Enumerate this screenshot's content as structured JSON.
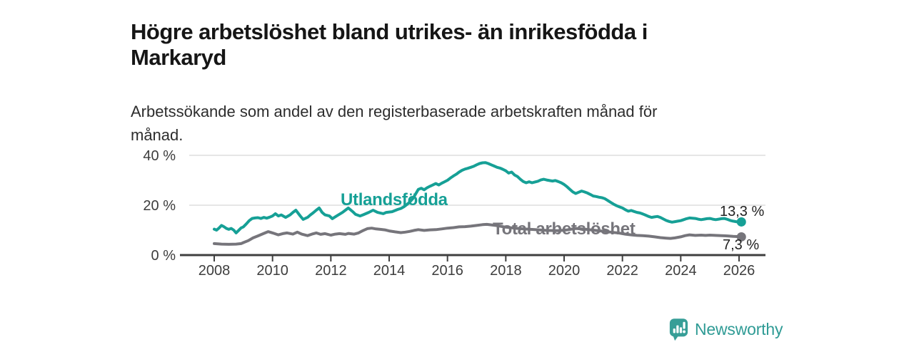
{
  "header": {
    "title_line1": "Högre arbetslöshet bland utrikes- än inrikesfödda i",
    "title_line2": "Markaryd",
    "subtitle_line1": "Arbetssökande som andel av den registerbaserade arbetskraften månad för",
    "subtitle_line2": "månad."
  },
  "chart_data": {
    "type": "line",
    "title": "Högre arbetslöshet bland utrikes- än inrikesfödda i Markaryd",
    "subtitle": "Arbetssökande som andel av den registerbaserade arbetskraften månad för månad.",
    "x_unit": "year",
    "xlim": [
      2008,
      2026.9
    ],
    "ylim": [
      0,
      43
    ],
    "grid": "horizontal",
    "x_ticks": [
      2008,
      2010,
      2012,
      2014,
      2016,
      2018,
      2020,
      2022,
      2024,
      2026
    ],
    "y_ticks": [
      {
        "value": 0,
        "label": "0 %"
      },
      {
        "value": 20,
        "label": "20 %"
      },
      {
        "value": 40,
        "label": "40 %"
      }
    ],
    "axis_color": "#3f3f3f",
    "grid_color": "#d8d8d8",
    "series": [
      {
        "name": "Utlandsfödda",
        "color": "#16a096",
        "end_label": "13,3 %",
        "end_value": 13.3,
        "points": [
          [
            2008.0,
            10.4
          ],
          [
            2008.08,
            10.0
          ],
          [
            2008.17,
            10.9
          ],
          [
            2008.25,
            11.9
          ],
          [
            2008.33,
            11.4
          ],
          [
            2008.42,
            10.7
          ],
          [
            2008.5,
            10.3
          ],
          [
            2008.58,
            10.7
          ],
          [
            2008.67,
            10.0
          ],
          [
            2008.75,
            8.9
          ],
          [
            2008.83,
            9.8
          ],
          [
            2008.92,
            10.9
          ],
          [
            2009.0,
            11.3
          ],
          [
            2009.1,
            12.5
          ],
          [
            2009.2,
            13.8
          ],
          [
            2009.3,
            14.7
          ],
          [
            2009.4,
            14.9
          ],
          [
            2009.5,
            15.0
          ],
          [
            2009.6,
            14.7
          ],
          [
            2009.7,
            15.1
          ],
          [
            2009.8,
            14.8
          ],
          [
            2009.9,
            15.2
          ],
          [
            2010.0,
            15.7
          ],
          [
            2010.1,
            16.6
          ],
          [
            2010.2,
            15.7
          ],
          [
            2010.3,
            16.1
          ],
          [
            2010.45,
            15.1
          ],
          [
            2010.6,
            16.1
          ],
          [
            2010.7,
            17.1
          ],
          [
            2010.8,
            18.0
          ],
          [
            2010.95,
            15.7
          ],
          [
            2011.05,
            14.3
          ],
          [
            2011.2,
            15.1
          ],
          [
            2011.3,
            16.1
          ],
          [
            2011.4,
            17.0
          ],
          [
            2011.5,
            18.0
          ],
          [
            2011.6,
            18.9
          ],
          [
            2011.7,
            17.1
          ],
          [
            2011.8,
            16.1
          ],
          [
            2011.95,
            15.7
          ],
          [
            2012.05,
            14.6
          ],
          [
            2012.2,
            15.7
          ],
          [
            2012.3,
            16.4
          ],
          [
            2012.4,
            17.1
          ],
          [
            2012.5,
            18.0
          ],
          [
            2012.6,
            18.9
          ],
          [
            2012.75,
            17.4
          ],
          [
            2012.85,
            16.3
          ],
          [
            2013.0,
            15.7
          ],
          [
            2013.1,
            16.1
          ],
          [
            2013.3,
            17.1
          ],
          [
            2013.45,
            18.0
          ],
          [
            2013.6,
            17.1
          ],
          [
            2013.8,
            16.6
          ],
          [
            2013.9,
            17.1
          ],
          [
            2014.1,
            17.4
          ],
          [
            2014.3,
            18.3
          ],
          [
            2014.4,
            18.7
          ],
          [
            2014.5,
            19.3
          ],
          [
            2014.6,
            20.2
          ],
          [
            2014.7,
            21.2
          ],
          [
            2014.8,
            22.5
          ],
          [
            2014.9,
            24.3
          ],
          [
            2015.0,
            26.3
          ],
          [
            2015.1,
            26.8
          ],
          [
            2015.2,
            26.2
          ],
          [
            2015.3,
            27.0
          ],
          [
            2015.4,
            27.6
          ],
          [
            2015.5,
            28.1
          ],
          [
            2015.6,
            28.7
          ],
          [
            2015.7,
            28.1
          ],
          [
            2015.8,
            28.8
          ],
          [
            2015.9,
            29.4
          ],
          [
            2016.0,
            30.0
          ],
          [
            2016.1,
            30.9
          ],
          [
            2016.2,
            31.7
          ],
          [
            2016.3,
            32.4
          ],
          [
            2016.4,
            33.3
          ],
          [
            2016.5,
            34.0
          ],
          [
            2016.6,
            34.5
          ],
          [
            2016.7,
            34.8
          ],
          [
            2016.8,
            35.2
          ],
          [
            2016.9,
            35.6
          ],
          [
            2017.0,
            36.2
          ],
          [
            2017.1,
            36.7
          ],
          [
            2017.2,
            37.0
          ],
          [
            2017.3,
            37.1
          ],
          [
            2017.4,
            36.7
          ],
          [
            2017.5,
            36.2
          ],
          [
            2017.6,
            35.7
          ],
          [
            2017.7,
            35.2
          ],
          [
            2017.8,
            34.9
          ],
          [
            2017.9,
            34.4
          ],
          [
            2018.0,
            33.8
          ],
          [
            2018.1,
            32.9
          ],
          [
            2018.2,
            33.3
          ],
          [
            2018.3,
            32.1
          ],
          [
            2018.4,
            31.5
          ],
          [
            2018.5,
            30.4
          ],
          [
            2018.6,
            29.5
          ],
          [
            2018.7,
            29.0
          ],
          [
            2018.8,
            29.4
          ],
          [
            2018.9,
            29.0
          ],
          [
            2019.0,
            29.3
          ],
          [
            2019.1,
            29.6
          ],
          [
            2019.2,
            30.1
          ],
          [
            2019.3,
            30.4
          ],
          [
            2019.4,
            30.1
          ],
          [
            2019.5,
            29.9
          ],
          [
            2019.6,
            29.7
          ],
          [
            2019.7,
            29.9
          ],
          [
            2019.8,
            29.5
          ],
          [
            2019.9,
            29.0
          ],
          [
            2020.0,
            28.3
          ],
          [
            2020.1,
            27.4
          ],
          [
            2020.2,
            26.3
          ],
          [
            2020.3,
            25.3
          ],
          [
            2020.4,
            24.7
          ],
          [
            2020.5,
            25.2
          ],
          [
            2020.6,
            25.7
          ],
          [
            2020.7,
            25.3
          ],
          [
            2020.8,
            24.9
          ],
          [
            2020.9,
            24.3
          ],
          [
            2021.0,
            23.7
          ],
          [
            2021.1,
            23.5
          ],
          [
            2021.2,
            23.2
          ],
          [
            2021.3,
            23.0
          ],
          [
            2021.4,
            22.6
          ],
          [
            2021.5,
            21.9
          ],
          [
            2021.6,
            21.1
          ],
          [
            2021.7,
            20.4
          ],
          [
            2021.8,
            19.8
          ],
          [
            2021.9,
            19.3
          ],
          [
            2022.0,
            18.9
          ],
          [
            2022.1,
            18.2
          ],
          [
            2022.2,
            17.6
          ],
          [
            2022.3,
            17.9
          ],
          [
            2022.4,
            17.5
          ],
          [
            2022.5,
            17.1
          ],
          [
            2022.6,
            16.9
          ],
          [
            2022.7,
            16.5
          ],
          [
            2022.8,
            16.0
          ],
          [
            2022.9,
            15.5
          ],
          [
            2023.0,
            15.1
          ],
          [
            2023.1,
            15.3
          ],
          [
            2023.2,
            15.5
          ],
          [
            2023.3,
            15.1
          ],
          [
            2023.4,
            14.5
          ],
          [
            2023.5,
            13.9
          ],
          [
            2023.6,
            13.5
          ],
          [
            2023.7,
            13.2
          ],
          [
            2023.8,
            13.4
          ],
          [
            2023.9,
            13.6
          ],
          [
            2024.0,
            13.8
          ],
          [
            2024.1,
            14.2
          ],
          [
            2024.2,
            14.6
          ],
          [
            2024.3,
            14.9
          ],
          [
            2024.4,
            14.8
          ],
          [
            2024.5,
            14.7
          ],
          [
            2024.6,
            14.4
          ],
          [
            2024.7,
            14.2
          ],
          [
            2024.8,
            14.4
          ],
          [
            2024.9,
            14.6
          ],
          [
            2025.0,
            14.7
          ],
          [
            2025.1,
            14.4
          ],
          [
            2025.2,
            14.2
          ],
          [
            2025.3,
            14.4
          ],
          [
            2025.4,
            14.6
          ],
          [
            2025.5,
            14.7
          ],
          [
            2025.6,
            14.3
          ],
          [
            2025.7,
            13.9
          ],
          [
            2025.8,
            13.6
          ],
          [
            2025.9,
            13.4
          ],
          [
            2026.0,
            13.2
          ],
          [
            2026.08,
            13.3
          ]
        ]
      },
      {
        "name": "Total arbetslöshet",
        "color": "#76757b",
        "end_label": "7,3 %",
        "end_value": 7.3,
        "points": [
          [
            2008.0,
            4.6
          ],
          [
            2008.25,
            4.4
          ],
          [
            2008.5,
            4.3
          ],
          [
            2008.75,
            4.4
          ],
          [
            2008.92,
            4.6
          ],
          [
            2009.0,
            5.0
          ],
          [
            2009.17,
            5.8
          ],
          [
            2009.33,
            6.9
          ],
          [
            2009.5,
            7.7
          ],
          [
            2009.7,
            8.7
          ],
          [
            2009.85,
            9.4
          ],
          [
            2010.0,
            8.9
          ],
          [
            2010.2,
            8.1
          ],
          [
            2010.35,
            8.6
          ],
          [
            2010.5,
            8.9
          ],
          [
            2010.7,
            8.4
          ],
          [
            2010.85,
            9.2
          ],
          [
            2011.0,
            8.4
          ],
          [
            2011.2,
            7.8
          ],
          [
            2011.35,
            8.4
          ],
          [
            2011.5,
            8.9
          ],
          [
            2011.65,
            8.3
          ],
          [
            2011.8,
            8.6
          ],
          [
            2012.0,
            8.0
          ],
          [
            2012.15,
            8.4
          ],
          [
            2012.3,
            8.6
          ],
          [
            2012.5,
            8.3
          ],
          [
            2012.6,
            8.7
          ],
          [
            2012.8,
            8.4
          ],
          [
            2012.95,
            8.9
          ],
          [
            2013.1,
            9.8
          ],
          [
            2013.25,
            10.6
          ],
          [
            2013.4,
            10.8
          ],
          [
            2013.55,
            10.5
          ],
          [
            2013.7,
            10.3
          ],
          [
            2013.85,
            10.1
          ],
          [
            2014.0,
            9.7
          ],
          [
            2014.2,
            9.3
          ],
          [
            2014.4,
            9.0
          ],
          [
            2014.55,
            9.2
          ],
          [
            2014.7,
            9.5
          ],
          [
            2014.85,
            9.9
          ],
          [
            2015.0,
            10.2
          ],
          [
            2015.2,
            9.9
          ],
          [
            2015.4,
            10.1
          ],
          [
            2015.6,
            10.2
          ],
          [
            2015.8,
            10.5
          ],
          [
            2016.0,
            10.8
          ],
          [
            2016.2,
            11.0
          ],
          [
            2016.4,
            11.3
          ],
          [
            2016.6,
            11.4
          ],
          [
            2016.8,
            11.6
          ],
          [
            2017.0,
            11.9
          ],
          [
            2017.2,
            12.2
          ],
          [
            2017.35,
            12.3
          ],
          [
            2017.5,
            12.1
          ],
          [
            2017.7,
            11.8
          ],
          [
            2017.85,
            11.5
          ],
          [
            2018.0,
            11.2
          ],
          [
            2018.3,
            10.8
          ],
          [
            2018.6,
            10.5
          ],
          [
            2019.0,
            10.2
          ],
          [
            2019.4,
            9.9
          ],
          [
            2019.8,
            9.8
          ],
          [
            2020.1,
            10.1
          ],
          [
            2020.4,
            10.7
          ],
          [
            2020.7,
            10.4
          ],
          [
            2021.0,
            10.0
          ],
          [
            2021.3,
            9.6
          ],
          [
            2021.6,
            9.2
          ],
          [
            2021.9,
            8.8
          ],
          [
            2022.1,
            8.4
          ],
          [
            2022.3,
            8.1
          ],
          [
            2022.5,
            7.9
          ],
          [
            2022.7,
            7.8
          ],
          [
            2022.9,
            7.6
          ],
          [
            2023.1,
            7.3
          ],
          [
            2023.3,
            7.0
          ],
          [
            2023.5,
            6.8
          ],
          [
            2023.65,
            6.7
          ],
          [
            2023.8,
            6.9
          ],
          [
            2024.0,
            7.3
          ],
          [
            2024.15,
            7.8
          ],
          [
            2024.3,
            8.1
          ],
          [
            2024.5,
            7.9
          ],
          [
            2024.7,
            8.0
          ],
          [
            2024.85,
            7.9
          ],
          [
            2025.0,
            8.0
          ],
          [
            2025.2,
            7.9
          ],
          [
            2025.4,
            7.8
          ],
          [
            2025.6,
            7.7
          ],
          [
            2025.8,
            7.5
          ],
          [
            2026.0,
            7.4
          ],
          [
            2026.08,
            7.3
          ]
        ]
      }
    ]
  },
  "footer": {
    "brand": "Newsworthy",
    "logo_icon": "bar-chart-speech-bubble-icon",
    "brand_color": "#2f9b95"
  }
}
